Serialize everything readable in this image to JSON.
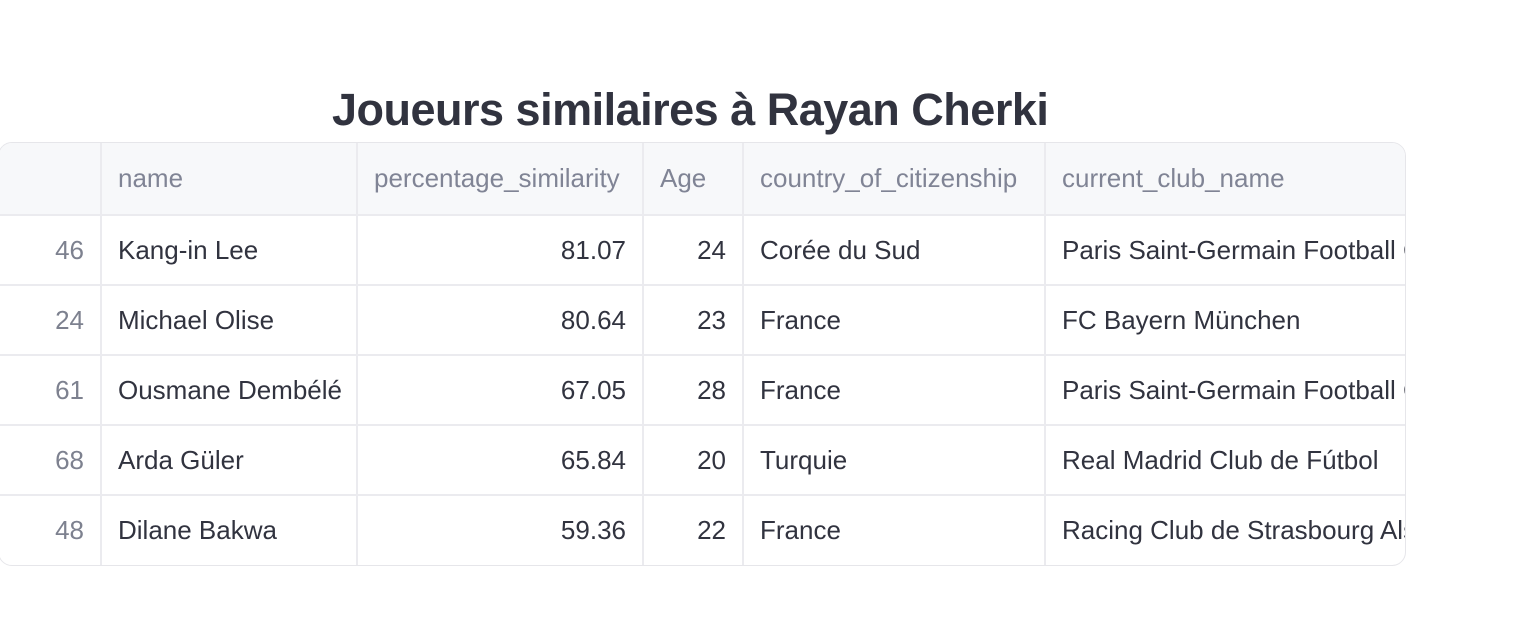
{
  "title": "Joueurs similaires à Rayan Cherki",
  "table": {
    "columns": [
      "",
      "name",
      "percentage_similarity",
      "Age",
      "country_of_citizenship",
      "current_club_name"
    ],
    "rows": [
      {
        "index": "46",
        "name": "Kang-in Lee",
        "percentage_similarity": "81.07",
        "age": "24",
        "country": "Corée du Sud",
        "club": "Paris Saint-Germain Football Club"
      },
      {
        "index": "24",
        "name": "Michael Olise",
        "percentage_similarity": "80.64",
        "age": "23",
        "country": "France",
        "club": "FC Bayern München"
      },
      {
        "index": "61",
        "name": "Ousmane Dembélé",
        "percentage_similarity": "67.05",
        "age": "28",
        "country": "France",
        "club": "Paris Saint-Germain Football Club"
      },
      {
        "index": "68",
        "name": "Arda Güler",
        "percentage_similarity": "65.84",
        "age": "20",
        "country": "Turquie",
        "club": "Real Madrid Club de Fútbol"
      },
      {
        "index": "48",
        "name": "Dilane Bakwa",
        "percentage_similarity": "59.36",
        "age": "22",
        "country": "France",
        "club": "Racing Club de Strasbourg Alsace"
      }
    ]
  }
}
